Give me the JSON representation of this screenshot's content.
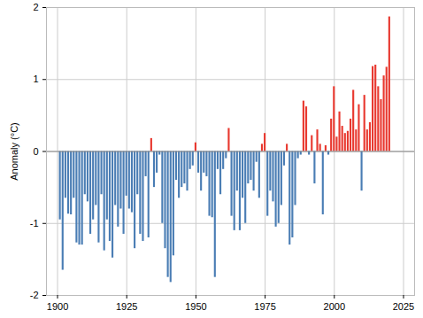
{
  "chart_data": {
    "type": "bar",
    "x": [
      1901,
      1902,
      1903,
      1904,
      1905,
      1906,
      1907,
      1908,
      1909,
      1910,
      1911,
      1912,
      1913,
      1914,
      1915,
      1916,
      1917,
      1918,
      1919,
      1920,
      1921,
      1922,
      1923,
      1924,
      1925,
      1926,
      1927,
      1928,
      1929,
      1930,
      1931,
      1932,
      1933,
      1934,
      1935,
      1936,
      1937,
      1938,
      1939,
      1940,
      1941,
      1942,
      1943,
      1944,
      1945,
      1946,
      1947,
      1948,
      1949,
      1950,
      1951,
      1952,
      1953,
      1954,
      1955,
      1956,
      1957,
      1958,
      1959,
      1960,
      1961,
      1962,
      1963,
      1964,
      1965,
      1966,
      1967,
      1968,
      1969,
      1970,
      1971,
      1972,
      1973,
      1974,
      1975,
      1976,
      1977,
      1978,
      1979,
      1980,
      1981,
      1982,
      1983,
      1984,
      1985,
      1986,
      1987,
      1988,
      1989,
      1990,
      1991,
      1992,
      1993,
      1994,
      1995,
      1996,
      1997,
      1998,
      1999,
      2000,
      2001,
      2002,
      2003,
      2004,
      2005,
      2006,
      2007,
      2008,
      2009,
      2010,
      2011,
      2012,
      2013,
      2014,
      2015,
      2016,
      2017,
      2018,
      2019,
      2020
    ],
    "values": [
      -0.95,
      -1.65,
      -0.65,
      -0.87,
      -0.88,
      -0.65,
      -1.27,
      -1.3,
      -1.3,
      -0.6,
      -0.7,
      -1.15,
      -0.95,
      -0.75,
      -1.27,
      -0.6,
      -1.38,
      -0.95,
      -1.25,
      -1.48,
      -0.75,
      -1.05,
      -0.8,
      -1.15,
      -0.62,
      -0.8,
      -0.85,
      -1.35,
      -0.6,
      -1.15,
      -1.25,
      -0.35,
      -1.2,
      0.18,
      -0.5,
      -0.3,
      -0.05,
      -1.0,
      -1.35,
      -1.75,
      -1.82,
      -1.45,
      -0.4,
      -0.65,
      -0.5,
      -0.45,
      -0.55,
      -0.25,
      -0.2,
      0.12,
      -0.3,
      -0.55,
      -0.3,
      -0.35,
      -0.9,
      -0.92,
      -1.75,
      -0.25,
      -0.6,
      -0.25,
      -0.1,
      0.32,
      -0.9,
      -1.1,
      -0.55,
      -1.1,
      -0.65,
      -1.0,
      -0.45,
      -0.4,
      -0.55,
      -0.15,
      -0.65,
      0.1,
      0.25,
      -0.9,
      -0.55,
      -0.7,
      -1.05,
      -1.0,
      -0.75,
      -0.2,
      0.1,
      -1.3,
      -1.2,
      -0.75,
      -0.1,
      -0.05,
      0.7,
      0.62,
      -0.05,
      0.22,
      -0.45,
      0.3,
      0.1,
      -0.88,
      0.08,
      -0.05,
      0.45,
      0.9,
      0.2,
      0.55,
      0.35,
      0.25,
      0.28,
      0.45,
      0.85,
      0.3,
      0.65,
      -0.55,
      0.78,
      0.3,
      0.4,
      1.18,
      1.2,
      0.9,
      0.72,
      1.05,
      1.17,
      1.87
    ],
    "colors": [
      "#4a7db4",
      "#4a7db4",
      "#4a7db4",
      "#4a7db4",
      "#4a7db4",
      "#4a7db4",
      "#4a7db4",
      "#4a7db4",
      "#4a7db4",
      "#4a7db4",
      "#4a7db4",
      "#4a7db4",
      "#4a7db4",
      "#4a7db4",
      "#4a7db4",
      "#4a7db4",
      "#4a7db4",
      "#4a7db4",
      "#4a7db4",
      "#4a7db4",
      "#4a7db4",
      "#4a7db4",
      "#4a7db4",
      "#4a7db4",
      "#4a7db4",
      "#4a7db4",
      "#4a7db4",
      "#4a7db4",
      "#4a7db4",
      "#4a7db4",
      "#4a7db4",
      "#4a7db4",
      "#4a7db4",
      "#e8382f",
      "#4a7db4",
      "#4a7db4",
      "#4a7db4",
      "#4a7db4",
      "#4a7db4",
      "#4a7db4",
      "#4a7db4",
      "#4a7db4",
      "#4a7db4",
      "#4a7db4",
      "#4a7db4",
      "#4a7db4",
      "#4a7db4",
      "#4a7db4",
      "#4a7db4",
      "#e8382f",
      "#4a7db4",
      "#4a7db4",
      "#4a7db4",
      "#4a7db4",
      "#4a7db4",
      "#4a7db4",
      "#4a7db4",
      "#4a7db4",
      "#4a7db4",
      "#4a7db4",
      "#4a7db4",
      "#e8382f",
      "#4a7db4",
      "#4a7db4",
      "#4a7db4",
      "#4a7db4",
      "#4a7db4",
      "#4a7db4",
      "#4a7db4",
      "#4a7db4",
      "#4a7db4",
      "#4a7db4",
      "#4a7db4",
      "#e8382f",
      "#e8382f",
      "#4a7db4",
      "#4a7db4",
      "#4a7db4",
      "#4a7db4",
      "#4a7db4",
      "#4a7db4",
      "#4a7db4",
      "#e8382f",
      "#4a7db4",
      "#4a7db4",
      "#4a7db4",
      "#4a7db4",
      "#4a7db4",
      "#e8382f",
      "#e8382f",
      "#4a7db4",
      "#e8382f",
      "#4a7db4",
      "#e8382f",
      "#e8382f",
      "#4a7db4",
      "#e8382f",
      "#4a7db4",
      "#e8382f",
      "#e8382f",
      "#e8382f",
      "#e8382f",
      "#e8382f",
      "#e8382f",
      "#e8382f",
      "#e8382f",
      "#e8382f",
      "#e8382f",
      "#e8382f",
      "#4a7db4",
      "#e8382f",
      "#e8382f",
      "#e8382f",
      "#e8382f",
      "#e8382f",
      "#e8382f",
      "#e8382f",
      "#e8382f",
      "#e8382f",
      "#e8382f"
    ],
    "y_label": "Anomaly (°C)",
    "xlim": [
      1896,
      2029
    ],
    "xticks": [
      1900,
      1925,
      1950,
      1975,
      2000,
      2025
    ],
    "ylim": [
      -2,
      2
    ],
    "yticks": [
      -2,
      -1,
      0,
      1,
      2
    ],
    "grid": true
  }
}
